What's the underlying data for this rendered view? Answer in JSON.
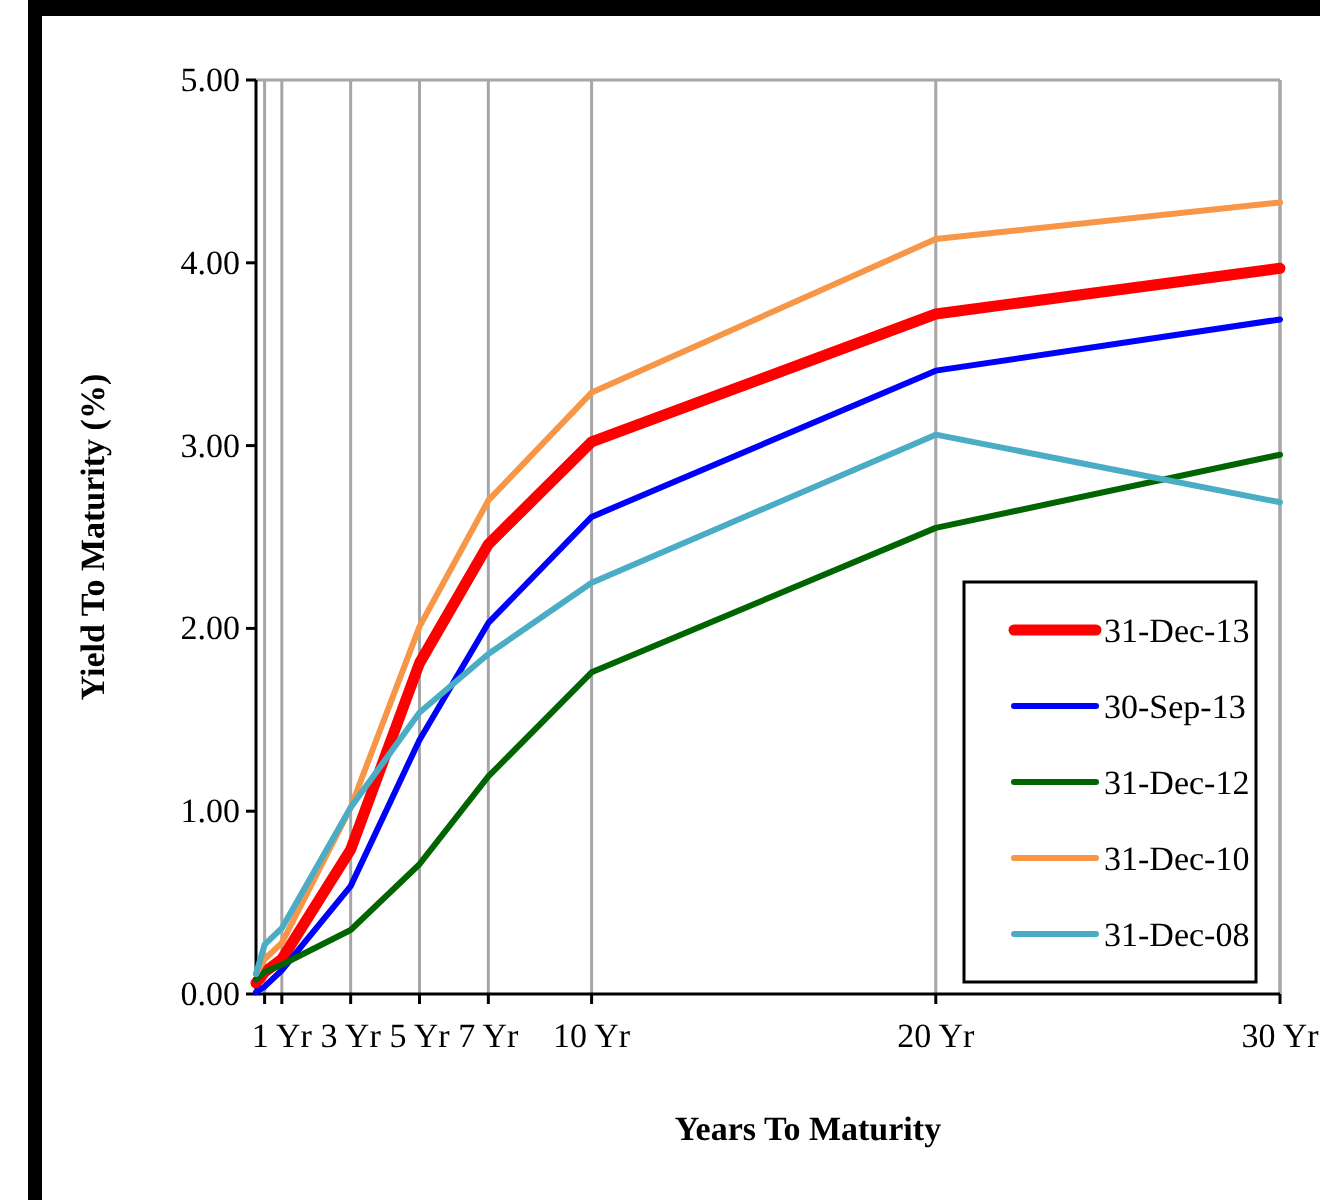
{
  "chart_data": {
    "type": "line",
    "xlabel": "Years To Maturity",
    "ylabel": "Yield To Maturity (%)",
    "x": [
      0.25,
      0.5,
      1,
      3,
      5,
      7,
      10,
      20,
      30
    ],
    "xlim": [
      0.25,
      30
    ],
    "xticks": [
      {
        "value": 0.5,
        "label": null
      },
      {
        "value": 1,
        "label": "1 Yr"
      },
      {
        "value": 3,
        "label": "3 Yr"
      },
      {
        "value": 5,
        "label": "5 Yr"
      },
      {
        "value": 7,
        "label": "7 Yr"
      },
      {
        "value": 10,
        "label": "10 Yr"
      },
      {
        "value": 20,
        "label": "20 Yr"
      },
      {
        "value": 30,
        "label": "30 Yr"
      }
    ],
    "ylim": [
      0,
      5
    ],
    "yticks": [
      {
        "value": 0,
        "label": "0.00"
      },
      {
        "value": 1,
        "label": "1.00"
      },
      {
        "value": 2,
        "label": "2.00"
      },
      {
        "value": 3,
        "label": "3.00"
      },
      {
        "value": 4,
        "label": "4.00"
      },
      {
        "value": 5,
        "label": "5.00"
      }
    ],
    "grid": "x",
    "legend": "bottom right",
    "marker": "none",
    "line_style": "solid",
    "series": [
      {
        "name": "31-Dec-13",
        "color": "#ff0000",
        "values": [
          0.06,
          0.12,
          0.19,
          0.79,
          1.81,
          2.46,
          3.02,
          3.72,
          3.97
        ]
      },
      {
        "name": "30-Sep-13",
        "color": "#0000ff",
        "values": [
          0.01,
          0.04,
          0.13,
          0.59,
          1.39,
          2.03,
          2.61,
          3.41,
          3.69
        ]
      },
      {
        "name": "31-Dec-12",
        "color": "#006400",
        "values": [
          0.08,
          0.12,
          0.16,
          0.35,
          0.71,
          1.19,
          1.76,
          2.55,
          2.95
        ]
      },
      {
        "name": "31-Dec-10",
        "color": "#f79646",
        "values": [
          0.11,
          0.19,
          0.28,
          1.02,
          2.01,
          2.7,
          3.29,
          4.13,
          4.33
        ]
      },
      {
        "name": "31-Dec-08",
        "color": "#4bacc6",
        "values": [
          0.11,
          0.27,
          0.36,
          1.02,
          1.54,
          1.86,
          2.25,
          3.06,
          2.69
        ]
      }
    ]
  }
}
